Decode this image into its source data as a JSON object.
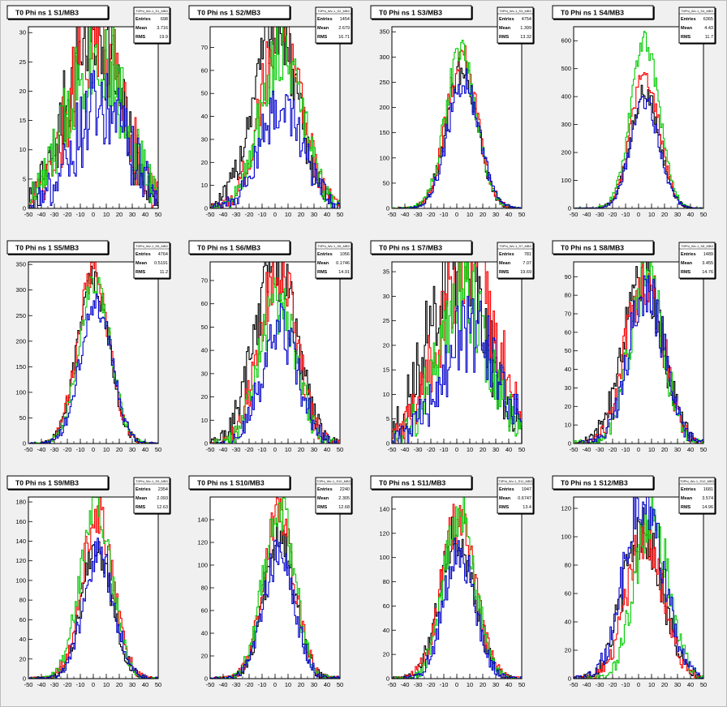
{
  "colors": {
    "series": [
      "#000000",
      "#ff0000",
      "#00cc00",
      "#0000cc"
    ],
    "pad_bg": "#f0f0f0",
    "frame_bg": "#ffffff"
  },
  "stats_labels": {
    "entries": "Entries",
    "mean": "Mean",
    "rms": "RMS"
  },
  "chart_data": [
    {
      "type": "bar",
      "title": "T0 Phi ns 1 S1/MB3",
      "stats": {
        "name": "T0Phi_Wv-1_S1_MB3",
        "entries": "698",
        "mean": "3.716",
        "rms": "19.9"
      },
      "xlim": [
        -50,
        50
      ],
      "ylim": [
        0,
        31
      ],
      "xticks": [
        -50,
        -40,
        -30,
        -20,
        -10,
        0,
        10,
        20,
        30,
        40,
        50
      ],
      "yticks": [
        0,
        5,
        10,
        15,
        20,
        25,
        30
      ],
      "series": [
        {
          "mu": 0,
          "sigma": 20,
          "amp": 31
        },
        {
          "mu": 3,
          "sigma": 20,
          "amp": 31
        },
        {
          "mu": 2,
          "sigma": 22,
          "amp": 27
        },
        {
          "mu": 6,
          "sigma": 22,
          "amp": 17
        }
      ]
    },
    {
      "type": "bar",
      "title": "T0 Phi ns 1 S2/MB3",
      "stats": {
        "name": "T0Phi_Wv-1_S2_MB3",
        "entries": "1454",
        "mean": "2.679",
        "rms": "16.71"
      },
      "xlim": [
        -50,
        50
      ],
      "ylim": [
        0,
        79
      ],
      "xticks": [
        -50,
        -40,
        -30,
        -20,
        -10,
        0,
        10,
        20,
        30,
        40,
        50
      ],
      "yticks": [
        0,
        10,
        20,
        30,
        40,
        50,
        60,
        70
      ],
      "series": [
        {
          "mu": 0,
          "sigma": 17,
          "amp": 79
        },
        {
          "mu": 5,
          "sigma": 16,
          "amp": 78
        },
        {
          "mu": 5,
          "sigma": 16,
          "amp": 69
        },
        {
          "mu": 5,
          "sigma": 17,
          "amp": 45
        }
      ]
    },
    {
      "type": "bar",
      "title": "T0 Phi ns 1 S3/MB3",
      "stats": {
        "name": "T0Phi_Wv-1_S3_MB3",
        "entries": "4754",
        "mean": "1.399",
        "rms": "13.32"
      },
      "xlim": [
        -50,
        50
      ],
      "ylim": [
        0,
        360
      ],
      "xticks": [
        -50,
        -40,
        -30,
        -20,
        -10,
        0,
        10,
        20,
        30,
        40,
        50
      ],
      "yticks": [
        0,
        50,
        100,
        150,
        200,
        250,
        300,
        350
      ],
      "series": [
        {
          "mu": 4,
          "sigma": 12,
          "amp": 275
        },
        {
          "mu": 4,
          "sigma": 12,
          "amp": 300
        },
        {
          "mu": 3,
          "sigma": 12,
          "amp": 305
        },
        {
          "mu": 5,
          "sigma": 12,
          "amp": 255
        }
      ]
    },
    {
      "type": "bar",
      "title": "T0 Phi ns 1 S4/MB3",
      "stats": {
        "name": "T0Phi_Wv-1_S4_MB3",
        "entries": "6365",
        "mean": "4.43",
        "rms": "11.7"
      },
      "xlim": [
        -50,
        50
      ],
      "ylim": [
        0,
        650
      ],
      "xticks": [
        -50,
        -40,
        -30,
        -20,
        -10,
        0,
        10,
        20,
        30,
        40,
        50
      ],
      "yticks": [
        0,
        100,
        200,
        300,
        400,
        500,
        600
      ],
      "series": [
        {
          "mu": 5,
          "sigma": 11,
          "amp": 420
        },
        {
          "mu": 5,
          "sigma": 11,
          "amp": 480
        },
        {
          "mu": 5,
          "sigma": 11,
          "amp": 600
        },
        {
          "mu": 5,
          "sigma": 11,
          "amp": 380
        }
      ]
    },
    {
      "type": "bar",
      "title": "T0 Phi ns 1 S5/MB3",
      "stats": {
        "name": "T0Phi_Wv-1_S5_MB3",
        "entries": "4764",
        "mean": "0.5191",
        "rms": "11.2"
      },
      "xlim": [
        -50,
        50
      ],
      "ylim": [
        0,
        355
      ],
      "xticks": [
        -50,
        -40,
        -30,
        -20,
        -10,
        0,
        10,
        20,
        30,
        40,
        50
      ],
      "yticks": [
        0,
        50,
        100,
        150,
        200,
        250,
        300,
        350
      ],
      "series": [
        {
          "mu": 0,
          "sigma": 12,
          "amp": 320
        },
        {
          "mu": 0,
          "sigma": 12,
          "amp": 335
        },
        {
          "mu": 1,
          "sigma": 12,
          "amp": 320
        },
        {
          "mu": 2,
          "sigma": 12,
          "amp": 275
        }
      ]
    },
    {
      "type": "bar",
      "title": "T0 Phi ns 1 S6/MB3",
      "stats": {
        "name": "T0Phi_Wv-1_S6_MB3",
        "entries": "1056",
        "mean": "0.1746",
        "rms": "14.91"
      },
      "xlim": [
        -50,
        50
      ],
      "ylim": [
        0,
        78
      ],
      "xticks": [
        -50,
        -40,
        -30,
        -20,
        -10,
        0,
        10,
        20,
        30,
        40,
        50
      ],
      "yticks": [
        0,
        10,
        20,
        30,
        40,
        50,
        60,
        70
      ],
      "series": [
        {
          "mu": 0,
          "sigma": 16,
          "amp": 78
        },
        {
          "mu": 2,
          "sigma": 14,
          "amp": 75
        },
        {
          "mu": 2,
          "sigma": 14,
          "amp": 60
        },
        {
          "mu": 4,
          "sigma": 14,
          "amp": 48
        }
      ]
    },
    {
      "type": "bar",
      "title": "T0 Phi ns 1 S7/MB3",
      "stats": {
        "name": "T0Phi_Wv-1_S7_MB3",
        "entries": "781",
        "mean": "7.07",
        "rms": "19.69"
      },
      "xlim": [
        -50,
        50
      ],
      "ylim": [
        0,
        37
      ],
      "xticks": [
        -50,
        -40,
        -30,
        -20,
        -10,
        0,
        10,
        20,
        30,
        40,
        50
      ],
      "yticks": [
        0,
        5,
        10,
        15,
        20,
        25,
        30,
        35
      ],
      "series": [
        {
          "mu": 0,
          "sigma": 22,
          "amp": 37
        },
        {
          "mu": 8,
          "sigma": 22,
          "amp": 37
        },
        {
          "mu": 5,
          "sigma": 20,
          "amp": 30
        },
        {
          "mu": 10,
          "sigma": 22,
          "amp": 23
        }
      ]
    },
    {
      "type": "bar",
      "title": "T0 Phi ns 1 S8/MB3",
      "stats": {
        "name": "T0Phi_Wv-1_S8_MB3",
        "entries": "1489",
        "mean": "3.455",
        "rms": "14.76"
      },
      "xlim": [
        -50,
        50
      ],
      "ylim": [
        0,
        98
      ],
      "xticks": [
        -50,
        -40,
        -30,
        -20,
        -10,
        0,
        10,
        20,
        30,
        40,
        50
      ],
      "yticks": [
        0,
        10,
        20,
        30,
        40,
        50,
        60,
        70,
        80,
        90
      ],
      "series": [
        {
          "mu": 3,
          "sigma": 15,
          "amp": 95
        },
        {
          "mu": 5,
          "sigma": 14,
          "amp": 92
        },
        {
          "mu": 6,
          "sigma": 13,
          "amp": 90
        },
        {
          "mu": 6,
          "sigma": 14,
          "amp": 82
        }
      ]
    },
    {
      "type": "bar",
      "title": "T0 Phi ns 1 S9/MB3",
      "stats": {
        "name": "T0Phi_Wv-1_S9_MB3",
        "entries": "2354",
        "mean": "2.093",
        "rms": "12.63"
      },
      "xlim": [
        -50,
        50
      ],
      "ylim": [
        0,
        185
      ],
      "xticks": [
        -50,
        -40,
        -30,
        -20,
        -10,
        0,
        10,
        20,
        30,
        40,
        50
      ],
      "yticks": [
        0,
        20,
        40,
        60,
        80,
        100,
        120,
        140,
        160,
        180
      ],
      "series": [
        {
          "mu": 3,
          "sigma": 12,
          "amp": 130
        },
        {
          "mu": 3,
          "sigma": 12,
          "amp": 170
        },
        {
          "mu": 2,
          "sigma": 12,
          "amp": 175
        },
        {
          "mu": 4,
          "sigma": 12,
          "amp": 125
        }
      ]
    },
    {
      "type": "bar",
      "title": "T0 Phi ns 1 S10/MB3",
      "stats": {
        "name": "T0Phi_Wv-1_S10_MB3",
        "entries": "2240",
        "mean": "2.305",
        "rms": "12.68"
      },
      "xlim": [
        -50,
        50
      ],
      "ylim": [
        0,
        160
      ],
      "xticks": [
        -50,
        -40,
        -30,
        -20,
        -10,
        0,
        10,
        20,
        30,
        40,
        50
      ],
      "yticks": [
        0,
        20,
        40,
        60,
        80,
        100,
        120,
        140
      ],
      "series": [
        {
          "mu": 3,
          "sigma": 12,
          "amp": 125
        },
        {
          "mu": 3,
          "sigma": 12,
          "amp": 140
        },
        {
          "mu": 3,
          "sigma": 12,
          "amp": 150
        },
        {
          "mu": 3,
          "sigma": 12,
          "amp": 110
        }
      ]
    },
    {
      "type": "bar",
      "title": "T0 Phi ns 1 S11/MB3",
      "stats": {
        "name": "T0Phi_Wv-1_S11_MB3",
        "entries": "1947",
        "mean": "0.6747",
        "rms": "13.4"
      },
      "xlim": [
        -50,
        50
      ],
      "ylim": [
        0,
        150
      ],
      "xticks": [
        -50,
        -40,
        -30,
        -20,
        -10,
        0,
        10,
        20,
        30,
        40,
        50
      ],
      "yticks": [
        0,
        20,
        40,
        60,
        80,
        100,
        120,
        140
      ],
      "series": [
        {
          "mu": 0,
          "sigma": 13,
          "amp": 120
        },
        {
          "mu": 1,
          "sigma": 13,
          "amp": 130
        },
        {
          "mu": 2,
          "sigma": 12,
          "amp": 138
        },
        {
          "mu": 2,
          "sigma": 12,
          "amp": 105
        }
      ]
    },
    {
      "type": "bar",
      "title": "T0 Phi ns 1 S12/MB3",
      "stats": {
        "name": "T0Phi_Wv-1_S12_MB3",
        "entries": "1681",
        "mean": "3.574",
        "rms": "14.96"
      },
      "xlim": [
        -50,
        50
      ],
      "ylim": [
        0,
        128
      ],
      "xticks": [
        -50,
        -40,
        -30,
        -20,
        -10,
        0,
        10,
        20,
        30,
        40,
        50
      ],
      "yticks": [
        0,
        20,
        40,
        60,
        80,
        100,
        120
      ],
      "series": [
        {
          "mu": 3,
          "sigma": 15,
          "amp": 105
        },
        {
          "mu": 5,
          "sigma": 14,
          "amp": 100
        },
        {
          "mu": 10,
          "sigma": 13,
          "amp": 115
        },
        {
          "mu": 4,
          "sigma": 15,
          "amp": 128
        }
      ]
    }
  ]
}
